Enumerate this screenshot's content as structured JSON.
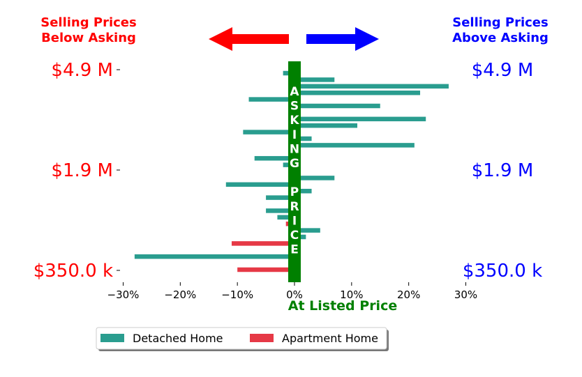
{
  "header": {
    "left_title_line1": "Selling Prices",
    "left_title_line2": "Below Asking",
    "right_title_line1": "Selling Prices",
    "right_title_line2": "Above Asking"
  },
  "colors": {
    "below": "#ff0000",
    "above": "#0000ff",
    "center": "#008000",
    "detached": "#2a9d8f",
    "apartment": "#e63946"
  },
  "center_label": "At Listed Price",
  "vertical_text": [
    "A",
    "S",
    "K",
    "I",
    "N",
    "G",
    "",
    "P",
    "R",
    "I",
    "C",
    "E"
  ],
  "price_labels_left": [
    "$4.9 M",
    "$1.9 M",
    "$350.0 k"
  ],
  "price_labels_right": [
    "$4.9 M",
    "$1.9 M",
    "$350.0 k"
  ],
  "legend": {
    "detached": "Detached Home",
    "apartment": "Apartment Home"
  },
  "chart_data": {
    "type": "bar",
    "orientation": "horizontal",
    "xlim": [
      -30,
      30
    ],
    "xticks": [
      "−30%",
      "−20%",
      "−10%",
      "0%",
      "10%",
      "20%",
      "30%"
    ],
    "xtick_values": [
      -30,
      -20,
      -10,
      0,
      10,
      20,
      30
    ],
    "yticks": [
      "$4.9 M",
      "$1.9 M",
      "$350.0 k"
    ],
    "bars": [
      {
        "series": "detached",
        "value": -2
      },
      {
        "series": "detached",
        "value": 7
      },
      {
        "series": "detached",
        "value": 27
      },
      {
        "series": "detached",
        "value": 22
      },
      {
        "series": "detached",
        "value": -8
      },
      {
        "series": "detached",
        "value": 15
      },
      {
        "series": "detached",
        "value": 0
      },
      {
        "series": "detached",
        "value": 23
      },
      {
        "series": "detached",
        "value": 11
      },
      {
        "series": "detached",
        "value": -9
      },
      {
        "series": "detached",
        "value": 3
      },
      {
        "series": "detached",
        "value": 21
      },
      {
        "series": "detached",
        "value": 0
      },
      {
        "series": "detached",
        "value": -7
      },
      {
        "series": "detached",
        "value": -2
      },
      {
        "series": "detached",
        "value": 0
      },
      {
        "series": "detached",
        "value": 7
      },
      {
        "series": "detached",
        "value": -12
      },
      {
        "series": "detached",
        "value": 3
      },
      {
        "series": "detached",
        "value": -5
      },
      {
        "series": "detached",
        "value": 0
      },
      {
        "series": "detached",
        "value": -5
      },
      {
        "series": "detached",
        "value": -3
      },
      {
        "series": "apartment",
        "value": -1.5
      },
      {
        "series": "detached",
        "value": 4.5
      },
      {
        "series": "detached",
        "value": 2
      },
      {
        "series": "apartment",
        "value": -11
      },
      {
        "series": "detached",
        "value": 0
      },
      {
        "series": "detached",
        "value": -28
      },
      {
        "series": "detached",
        "value": 0
      },
      {
        "series": "apartment",
        "value": -10
      }
    ]
  }
}
